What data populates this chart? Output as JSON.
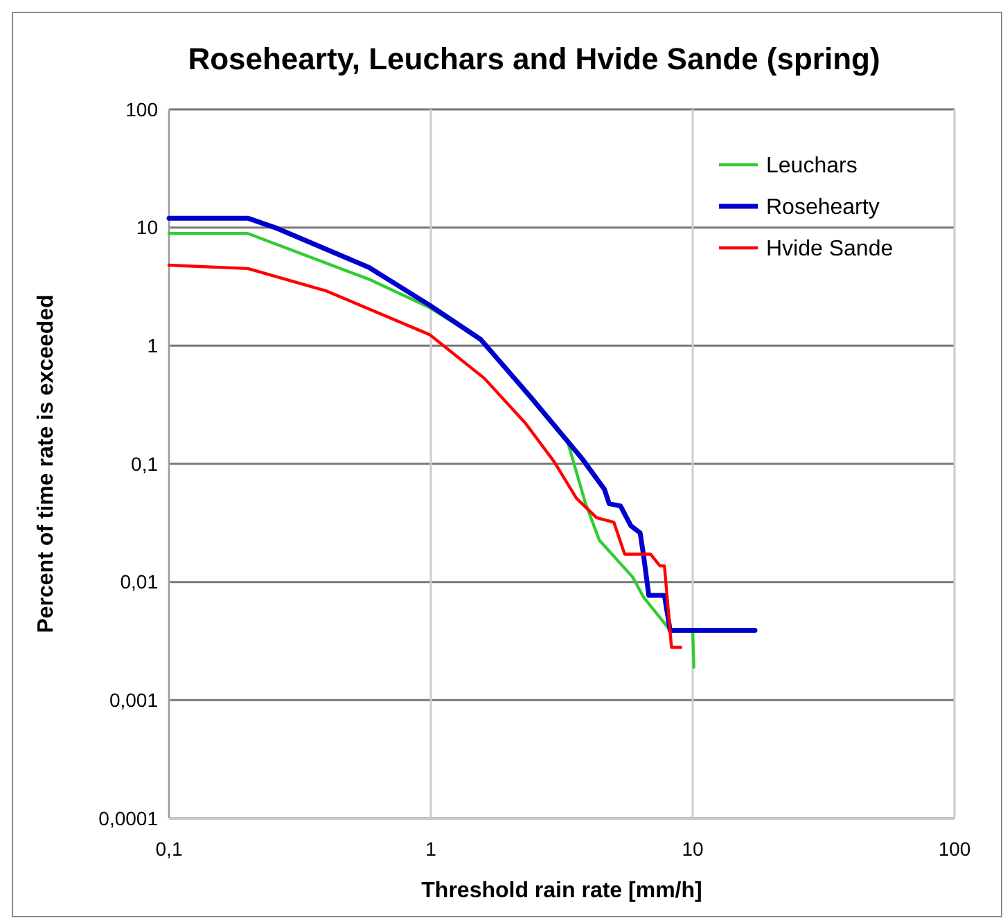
{
  "chart_data": {
    "type": "line",
    "title": "Rosehearty, Leuchars and Hvide Sande (spring)",
    "xlabel": "Threshold rain rate [mm/h]",
    "ylabel": "Percent of time rate is exceeded",
    "log": "xy",
    "grid": true,
    "legend": "top right",
    "xlim": [
      0.1,
      100
    ],
    "xticks": [
      {
        "value": 0.1,
        "label": "0,1"
      },
      1,
      10,
      100
    ],
    "ylim": [
      0.0001,
      100
    ],
    "yticks": [
      {
        "value": 0.0001,
        "label": "0,0001"
      },
      {
        "value": 0.001,
        "label": "0,001"
      },
      {
        "value": 0.01,
        "label": "0,01"
      },
      {
        "value": 0.1,
        "label": "0,1"
      },
      1,
      10,
      100
    ],
    "series": [
      {
        "name": "Leuchars",
        "color": "#33cc33",
        "x": [
          0.1,
          0.2,
          0.58,
          0.99,
          1.55,
          3.34,
          3.9,
          4.4,
          5.9,
          6.5,
          8.2,
          10,
          10.1
        ],
        "values": [
          8.9,
          8.9,
          3.65,
          2.1,
          1.13,
          0.15,
          0.046,
          0.0226,
          0.011,
          0.0074,
          0.0039,
          0.0039,
          0.0019
        ]
      },
      {
        "name": "Rosehearty",
        "color": "#0000cc",
        "x": [
          0.1,
          0.2,
          0.26,
          0.58,
          0.99,
          1.55,
          2.4,
          3.8,
          4.6,
          4.8,
          5.3,
          5.8,
          6.3,
          6.5,
          6.8,
          7.8,
          8.2,
          17.3
        ],
        "values": [
          12,
          12,
          9.8,
          4.6,
          2.2,
          1.13,
          0.37,
          0.109,
          0.061,
          0.046,
          0.044,
          0.03,
          0.026,
          0.0165,
          0.0077,
          0.0077,
          0.0039,
          0.0039
        ]
      },
      {
        "name": "Hvide Sande",
        "color": "#ff0000",
        "x": [
          0.1,
          0.2,
          0.4,
          0.99,
          1.6,
          2.3,
          2.96,
          3.6,
          4.3,
          5.0,
          5.5,
          6.9,
          7.5,
          7.8,
          8.3,
          9.0
        ],
        "values": [
          4.8,
          4.5,
          2.9,
          1.24,
          0.53,
          0.22,
          0.104,
          0.051,
          0.035,
          0.032,
          0.0172,
          0.0172,
          0.0137,
          0.0137,
          0.0028,
          0.0028
        ]
      }
    ]
  }
}
